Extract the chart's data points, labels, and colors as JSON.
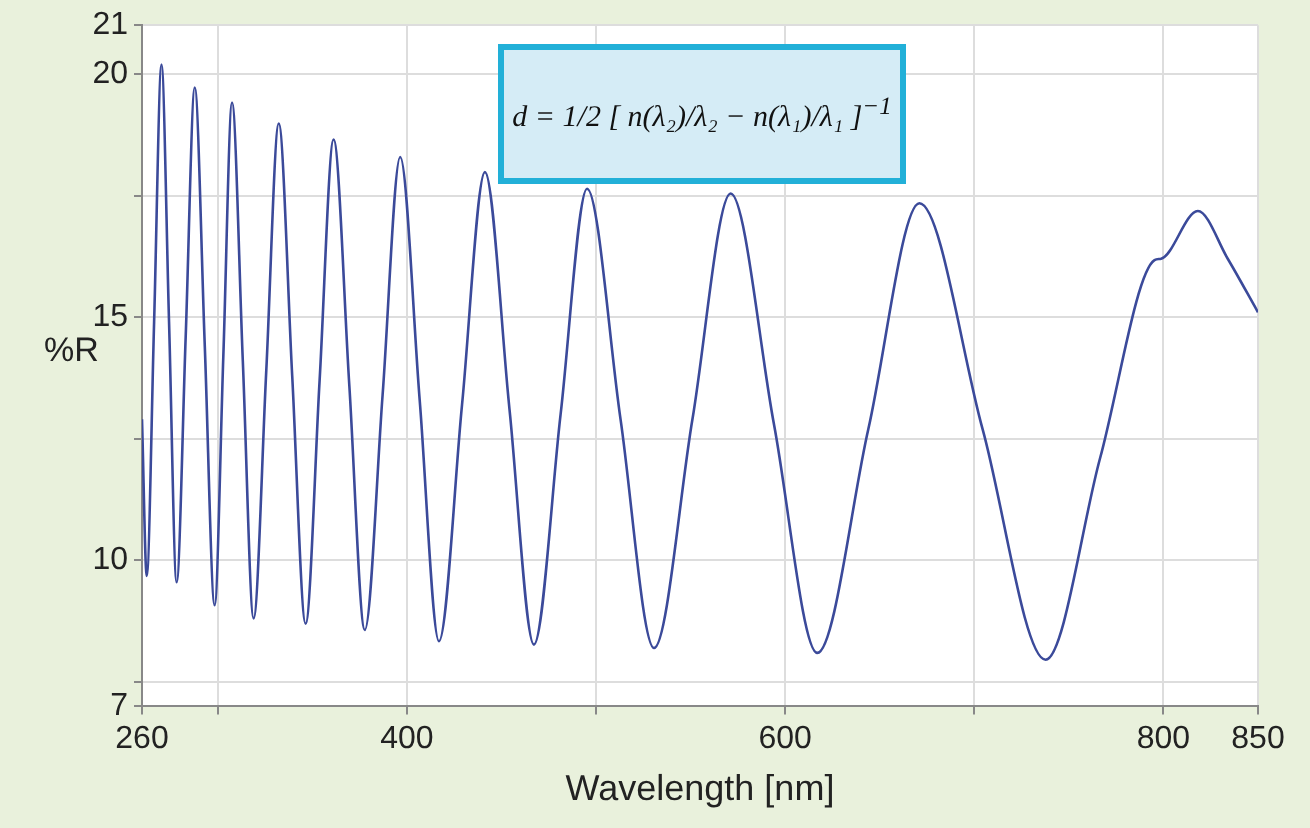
{
  "chart_data": {
    "type": "line",
    "xlabel": "Wavelength [nm]",
    "ylabel": "%R",
    "annotations": [
      "d = 1/2 [ n(λ₂)/λ₂ − n(λ₁)/λ₁ ]$^{−1}$"
    ],
    "x": [
      260,
      262.5,
      266.4,
      270.3,
      274.3,
      278.3,
      283.1,
      287.9,
      293.2,
      298.4,
      303,
      307.6,
      313.3,
      319,
      325.7,
      332.3,
      339.4,
      346.5,
      353.9,
      361.3,
      369.6,
      377.8,
      387.2,
      396.5,
      406.8,
      417,
      429.2,
      441.3,
      454.3,
      467.2,
      481.3,
      495.3,
      513,
      530.7,
      551,
      571.2,
      594.1,
      617,
      644,
      671,
      704.4,
      737.7,
      766.5,
      795.3,
      798.8,
      818.2,
      834,
      850
    ],
    "series": [
      {
        "color": "#3b4a9a",
        "values": [
          12.9,
          9.68,
          14.9,
          20.19,
          14.9,
          9.55,
          14.6,
          19.72,
          14.4,
          9.08,
          14.2,
          19.41,
          14.1,
          8.81,
          13.9,
          18.98,
          13.8,
          8.7,
          13.7,
          18.65,
          13.6,
          8.57,
          13.4,
          18.29,
          13.3,
          8.34,
          13.2,
          17.98,
          13.1,
          8.27,
          13,
          17.64,
          12.9,
          8.2,
          12.9,
          17.54,
          12.8,
          8.1,
          12.7,
          17.34,
          12.7,
          7.96,
          12.1,
          16.17,
          16.2,
          17.18,
          16.2,
          15.1
        ]
      }
    ],
    "xlim": [
      260,
      850
    ],
    "xticks": [
      260,
      {
        "value": 300,
        "label": null
      },
      400,
      {
        "value": 500,
        "label": null
      },
      600,
      {
        "value": 700,
        "label": null
      },
      800,
      850
    ],
    "ylim": [
      7,
      21
    ],
    "yticks": [
      7,
      {
        "value": 7.5,
        "label": null
      },
      10,
      {
        "value": 12.5,
        "label": null
      },
      15,
      {
        "value": 17.5,
        "label": null
      },
      20,
      21
    ],
    "grid": true,
    "legend": false,
    "marker": "none",
    "line_style": "solid"
  }
}
